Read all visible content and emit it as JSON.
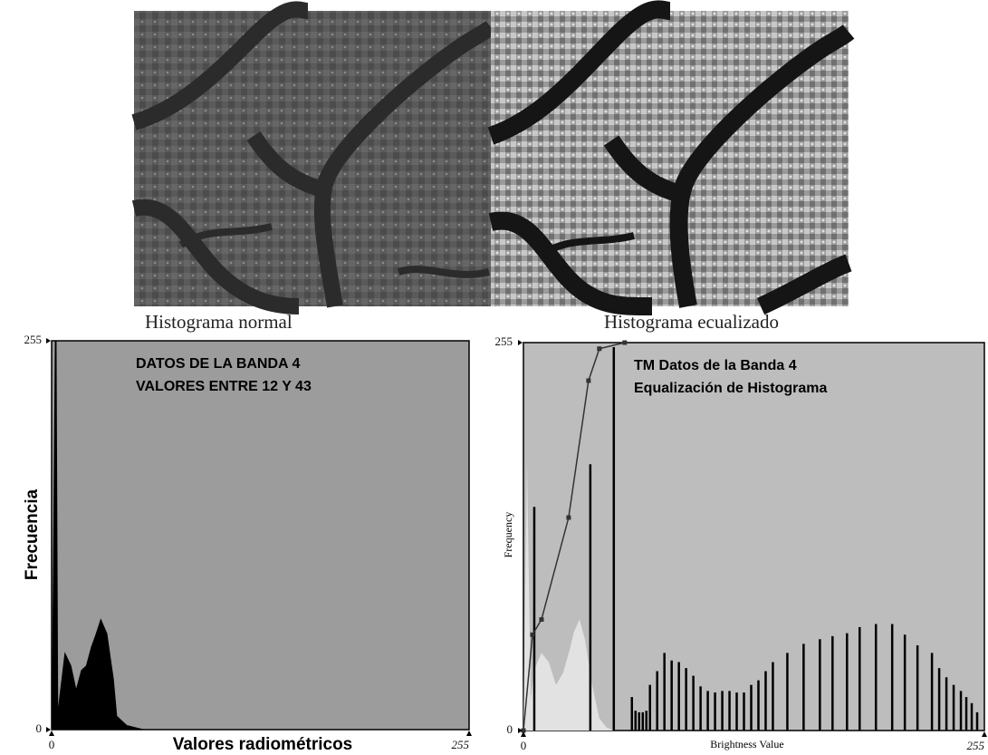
{
  "images": [
    {
      "caption": "Histograma normal"
    },
    {
      "caption": "Histograma ecualizado"
    }
  ],
  "chart_data": [
    {
      "type": "area",
      "annotation": [
        "DATOS DE LA BANDA 4",
        "VALORES ENTRE 12 Y 43"
      ],
      "ylabel": "Frecuencia",
      "xlabel": "Valores radiométricos",
      "xlim": [
        0,
        255
      ],
      "ylim": [
        0,
        255
      ],
      "xticks": [
        0,
        255
      ],
      "yticks": [
        0,
        255
      ],
      "background": "#9c9c9c",
      "color": "#000000",
      "x": [
        0,
        2,
        3,
        4,
        8,
        12,
        15,
        18,
        21,
        24,
        27,
        30,
        34,
        38,
        40,
        46,
        57,
        255
      ],
      "values": [
        0,
        255,
        255,
        15,
        51,
        42,
        27,
        39,
        42,
        54,
        63,
        73,
        63,
        33,
        9,
        3,
        0,
        0
      ]
    },
    {
      "type": "combo",
      "annotation": [
        "TM Datos de la Banda 4",
        "Equalización de Histograma"
      ],
      "ylabel": "Frequency",
      "xlabel": "Brightness Value",
      "xlim": [
        0,
        255
      ],
      "ylim": [
        0,
        255
      ],
      "xticks": [
        0,
        255
      ],
      "yticks": [
        0,
        255
      ],
      "background": "#bdbdbd",
      "series": [
        {
          "type": "area",
          "color": "#e2e2e2",
          "x": [
            0,
            2,
            4,
            6,
            10,
            14,
            18,
            22,
            26,
            28,
            31,
            34,
            38,
            42,
            46,
            50
          ],
          "values": [
            0,
            176,
            20,
            40,
            51,
            45,
            30,
            38,
            55,
            65,
            73,
            60,
            30,
            8,
            2,
            0
          ]
        },
        {
          "type": "bar",
          "color": "#000000",
          "x": [
            6,
            37,
            50,
            60,
            62,
            64,
            66,
            68,
            70,
            74,
            78,
            82,
            86,
            90,
            94,
            98,
            102,
            106,
            110,
            114,
            118,
            122,
            126,
            130,
            134,
            138,
            146,
            155,
            164,
            171,
            179,
            186,
            195,
            204,
            211,
            218,
            226,
            230,
            234,
            238,
            242,
            245,
            248,
            251
          ],
          "values": [
            147,
            175,
            252,
            22,
            13,
            12,
            12,
            13,
            30,
            39,
            51,
            46,
            45,
            41,
            36,
            29,
            26,
            25,
            26,
            26,
            25,
            25,
            30,
            33,
            39,
            45,
            51,
            57,
            60,
            62,
            64,
            68,
            70,
            70,
            63,
            56,
            51,
            41,
            35,
            30,
            26,
            22,
            18,
            12
          ]
        },
        {
          "type": "line",
          "color": "#333333",
          "x": [
            0,
            5,
            10,
            25,
            36,
            42,
            56
          ],
          "values": [
            0,
            63,
            73,
            140,
            230,
            251,
            255
          ]
        }
      ]
    }
  ]
}
